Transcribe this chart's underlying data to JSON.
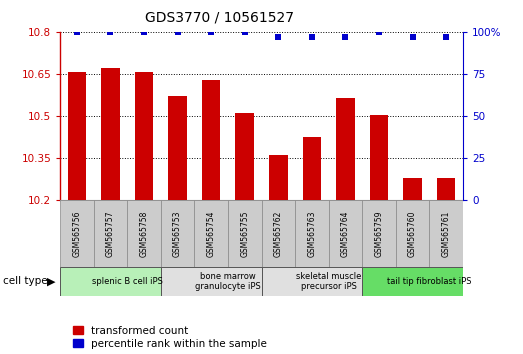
{
  "title": "GDS3770 / 10561527",
  "samples": [
    "GSM565756",
    "GSM565757",
    "GSM565758",
    "GSM565753",
    "GSM565754",
    "GSM565755",
    "GSM565762",
    "GSM565763",
    "GSM565764",
    "GSM565759",
    "GSM565760",
    "GSM565761"
  ],
  "transformed_counts": [
    10.655,
    10.672,
    10.655,
    10.572,
    10.627,
    10.512,
    10.362,
    10.425,
    10.565,
    10.505,
    10.28,
    10.28
  ],
  "percentile_ranks": [
    100,
    100,
    100,
    100,
    100,
    100,
    97,
    97,
    97,
    100,
    97,
    97
  ],
  "bar_color": "#cc0000",
  "dot_color": "#0000cc",
  "ylim_left": [
    10.2,
    10.8
  ],
  "ylim_right": [
    0,
    100
  ],
  "yticks_left": [
    10.2,
    10.35,
    10.5,
    10.65,
    10.8
  ],
  "yticks_right": [
    0,
    25,
    50,
    75,
    100
  ],
  "ytick_labels_left": [
    "10.2",
    "10.35",
    "10.5",
    "10.65",
    "10.8"
  ],
  "ytick_labels_right": [
    "0",
    "25",
    "50",
    "75",
    "100%"
  ],
  "cell_types": [
    {
      "label": "splenic B cell iPS",
      "start": 0,
      "end": 3,
      "color": "#b8f0b8"
    },
    {
      "label": "bone marrow\ngranulocyte iPS",
      "start": 3,
      "end": 6,
      "color": "#e0e0e0"
    },
    {
      "label": "skeletal muscle\nprecursor iPS",
      "start": 6,
      "end": 9,
      "color": "#e0e0e0"
    },
    {
      "label": "tail tip fibroblast iPS",
      "start": 9,
      "end": 12,
      "color": "#66dd66"
    }
  ],
  "xlabel_cell_type": "cell type",
  "legend_labels": [
    "transformed count",
    "percentile rank within the sample"
  ],
  "legend_colors": [
    "#cc0000",
    "#0000cc"
  ],
  "tick_label_color_left": "#cc0000",
  "tick_label_color_right": "#0000cc",
  "sample_box_color": "#cccccc",
  "bar_width": 0.55
}
